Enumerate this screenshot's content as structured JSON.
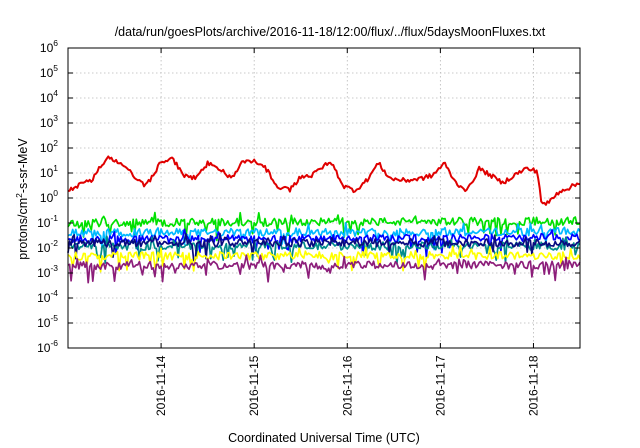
{
  "chart_data": {
    "type": "line",
    "title": "/data/run/goesPlots/archive/2016-11-18/12:00/flux/../flux/5daysMoonFluxes.txt",
    "xlabel": "Coordinated Universal Time (UTC)",
    "ylabel_parts": [
      "protons/cm",
      "2",
      "-s-sr-MeV"
    ],
    "x_scale": "time",
    "x_range_days": [
      "2016-11-13.0",
      "2016-11-18.5"
    ],
    "x_ticks": [
      "2016-11-14",
      "2016-11-15",
      "2016-11-16",
      "2016-11-17",
      "2016-11-18"
    ],
    "y_scale": "log",
    "y_range": [
      1e-06,
      1000000.0
    ],
    "y_ticks": [
      {
        "base": "10",
        "exp": "-6",
        "value": 1e-06
      },
      {
        "base": "10",
        "exp": "-5",
        "value": 1e-05
      },
      {
        "base": "10",
        "exp": "-4",
        "value": 0.0001
      },
      {
        "base": "10",
        "exp": "-3",
        "value": 0.001
      },
      {
        "base": "10",
        "exp": "-2",
        "value": 0.01
      },
      {
        "base": "10",
        "exp": "-1",
        "value": 0.1
      },
      {
        "base": "10",
        "exp": "0",
        "value": 1
      },
      {
        "base": "10",
        "exp": "1",
        "value": 10
      },
      {
        "base": "10",
        "exp": "2",
        "value": 100
      },
      {
        "base": "10",
        "exp": "3",
        "value": 1000
      },
      {
        "base": "10",
        "exp": "4",
        "value": 10000
      },
      {
        "base": "10",
        "exp": "5",
        "value": 100000
      },
      {
        "base": "10",
        "exp": "6",
        "value": 1000000
      }
    ],
    "grid": true,
    "legend": "none",
    "series": [
      {
        "color": "#e00000",
        "profile": [
          [
            "2016-11-13",
            2.0
          ],
          [
            "2016-11-13 03:00",
            3.5
          ],
          [
            "2016-11-13 06:00",
            5
          ],
          [
            "2016-11-13 08:00",
            15
          ],
          [
            "2016-11-13 10:00",
            40
          ],
          [
            "2016-11-13 12:00",
            30
          ],
          [
            "2016-11-13 14:00",
            25
          ],
          [
            "2016-11-13 16:00",
            12
          ],
          [
            "2016-11-13 18:00",
            5
          ],
          [
            "2016-11-13 20:00",
            3
          ],
          [
            "2016-11-13 22:00",
            8
          ],
          [
            "2016-11-14 00:00",
            30
          ],
          [
            "2016-11-14 03:00",
            35
          ],
          [
            "2016-11-14 06:00",
            8
          ],
          [
            "2016-11-14 09:00",
            6
          ],
          [
            "2016-11-14 12:00",
            25
          ],
          [
            "2016-11-14 15:00",
            15
          ],
          [
            "2016-11-14 18:00",
            6
          ],
          [
            "2016-11-14 21:00",
            30
          ],
          [
            "2016-11-15 00:00",
            28
          ],
          [
            "2016-11-15 03:00",
            15
          ],
          [
            "2016-11-15 06:00",
            3
          ],
          [
            "2016-11-15 09:00",
            2
          ],
          [
            "2016-11-15 12:00",
            7
          ],
          [
            "2016-11-15 15:00",
            8
          ],
          [
            "2016-11-15 18:00",
            20
          ],
          [
            "2016-11-15 20:00",
            25
          ],
          [
            "2016-11-15 23:00",
            3
          ],
          [
            "2016-11-16 02:00",
            2
          ],
          [
            "2016-11-16 05:00",
            5
          ],
          [
            "2016-11-16 08:00",
            25
          ],
          [
            "2016-11-16 11:00",
            6
          ],
          [
            "2016-11-16 15:00",
            5
          ],
          [
            "2016-11-16 19:00",
            6
          ],
          [
            "2016-11-16 22:00",
            8
          ],
          [
            "2016-11-17 01:00",
            25
          ],
          [
            "2016-11-17 04:00",
            4
          ],
          [
            "2016-11-17 07:00",
            2
          ],
          [
            "2016-11-17 10:00",
            15
          ],
          [
            "2016-11-17 13:00",
            8
          ],
          [
            "2016-11-17 16:00",
            4
          ],
          [
            "2016-11-17 19:00",
            8
          ],
          [
            "2016-11-17 22:00",
            15
          ],
          [
            "2016-11-18 01:00",
            12
          ],
          [
            "2016-11-18 02:00",
            0.8
          ],
          [
            "2016-11-18 03:00",
            0.5
          ],
          [
            "2016-11-18 05:00",
            1.0
          ],
          [
            "2016-11-18 07:00",
            2.0
          ],
          [
            "2016-11-18 09:00",
            2.5
          ],
          [
            "2016-11-18 12:00",
            4.0
          ]
        ]
      },
      {
        "color": "#00e000",
        "profile": [
          [
            "2016-11-13",
            0.1
          ],
          [
            "2016-11-18 12:00",
            0.12
          ]
        ]
      },
      {
        "color": "#00b8ff",
        "profile": [
          [
            "2016-11-13",
            0.04
          ],
          [
            "2016-11-18 12:00",
            0.045
          ]
        ]
      },
      {
        "color": "#0000ff",
        "profile": [
          [
            "2016-11-13",
            0.022
          ],
          [
            "2016-11-18 12:00",
            0.025
          ]
        ]
      },
      {
        "color": "#008c8c",
        "profile": [
          [
            "2016-11-13",
            0.012
          ],
          [
            "2016-11-18 12:00",
            0.012
          ]
        ]
      },
      {
        "color": "#0a0a80",
        "profile": [
          [
            "2016-11-13",
            0.016
          ],
          [
            "2016-11-18 12:00",
            0.016
          ]
        ]
      },
      {
        "color": "#ffff00",
        "profile": [
          [
            "2016-11-13",
            0.0048
          ],
          [
            "2016-11-18 12:00",
            0.005
          ]
        ]
      },
      {
        "color": "#8c1e7a",
        "profile": [
          [
            "2016-11-13",
            0.002
          ],
          [
            "2016-11-18 12:00",
            0.0021
          ]
        ]
      }
    ]
  }
}
